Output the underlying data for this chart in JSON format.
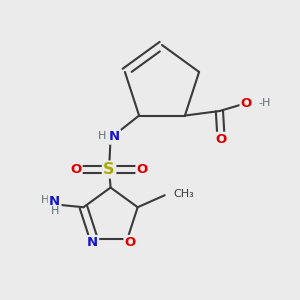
{
  "bg": "#ebebeb",
  "bond_color": "#3a3a3a",
  "bw": 1.5,
  "dbo": 0.013,
  "colors": {
    "C": "#3a3a3a",
    "N": "#1515cc",
    "O": "#dd0000",
    "S": "#aaaa00",
    "H": "#607070"
  },
  "fs": 9.5,
  "fs_s": 8.0
}
